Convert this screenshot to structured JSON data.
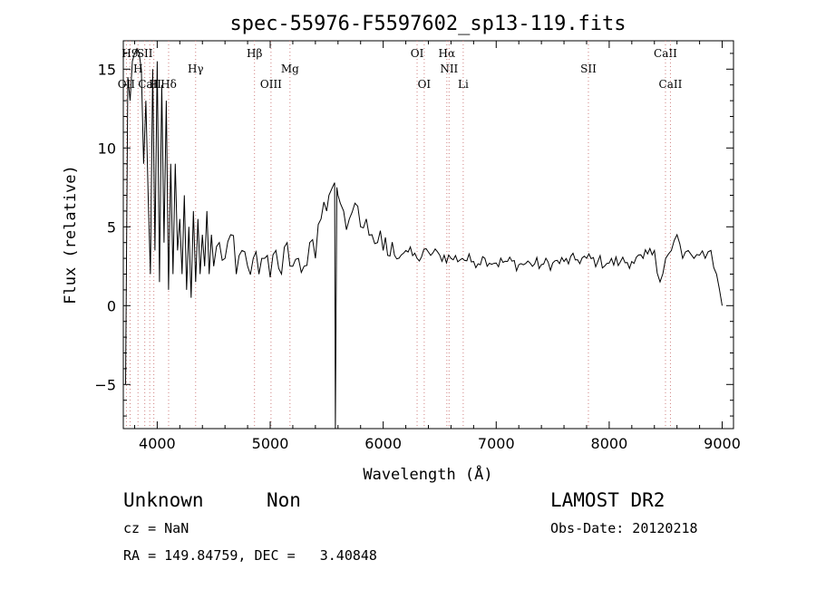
{
  "chart_data": {
    "type": "line",
    "title": "spec-55976-F5597602_sp13-119.fits",
    "xlabel": "Wavelength (Å)",
    "ylabel": "Flux (relative)",
    "xlim": [
      3700,
      9100
    ],
    "ylim": [
      -7.8,
      16.8
    ],
    "xticks": [
      4000,
      5000,
      6000,
      7000,
      8000,
      9000
    ],
    "yticks": [
      -5,
      0,
      5,
      10,
      15
    ],
    "grid": false,
    "series": [
      {
        "x": [
          3720,
          3740,
          3760,
          3780,
          3800,
          3820,
          3840,
          3860,
          3880,
          3900,
          3920,
          3940,
          3960,
          3980,
          4000,
          4020,
          4040,
          4060,
          4080,
          4100,
          4120,
          4140,
          4160,
          4180,
          4200,
          4220,
          4240,
          4260,
          4280,
          4300,
          4320,
          4340,
          4360,
          4380,
          4400,
          4420,
          4440,
          4460,
          4480,
          4500,
          4550,
          4600,
          4650,
          4700,
          4750,
          4800,
          4850,
          4900,
          4950,
          5000,
          5050,
          5100,
          5150,
          5200,
          5250,
          5300,
          5350,
          5400,
          5450,
          5500,
          5520,
          5550,
          5570,
          5577,
          5590,
          5600,
          5620,
          5650,
          5700,
          5750,
          5800,
          5850,
          5900,
          5950,
          6000,
          6100,
          6200,
          6300,
          6400,
          6500,
          6600,
          6700,
          6800,
          6900,
          7000,
          7100,
          7200,
          7300,
          7400,
          7500,
          7600,
          7700,
          7800,
          7900,
          8000,
          8100,
          8200,
          8300,
          8400,
          8450,
          8500,
          8550,
          8600,
          8650,
          8700,
          8750,
          8800,
          8850,
          8900,
          8950,
          9000
        ],
        "values": [
          -5.0,
          14.5,
          13.0,
          15.5,
          16.0,
          16.3,
          16.0,
          15.0,
          9.0,
          13.0,
          7.0,
          2.0,
          15.0,
          3.5,
          15.5,
          1.5,
          14.0,
          4.0,
          13.0,
          1.0,
          9.0,
          2.0,
          9.0,
          3.5,
          5.5,
          2.0,
          7.0,
          1.0,
          5.0,
          0.5,
          6.0,
          1.5,
          5.5,
          2.0,
          4.5,
          2.5,
          6.0,
          2.0,
          4.5,
          2.5,
          4.0,
          3.0,
          4.5,
          2.0,
          3.5,
          2.5,
          3.0,
          2.0,
          3.0,
          1.8,
          3.5,
          2.0,
          4.0,
          2.5,
          3.0,
          2.5,
          4.0,
          3.0,
          5.5,
          6.0,
          7.0,
          7.5,
          7.8,
          -7.8,
          7.5,
          7.0,
          6.5,
          6.0,
          5.5,
          6.5,
          5.0,
          5.5,
          4.5,
          4.0,
          3.5,
          3.2,
          3.5,
          3.0,
          3.4,
          3.2,
          3.0,
          3.0,
          2.8,
          3.0,
          2.7,
          2.8,
          2.6,
          2.7,
          2.6,
          2.7,
          2.8,
          2.9,
          3.0,
          2.8,
          2.7,
          2.8,
          2.8,
          3.0,
          3.5,
          1.5,
          3.0,
          3.5,
          4.5,
          3.0,
          3.5,
          3.0,
          3.2,
          3.0,
          3.5,
          2.0,
          0.0
        ]
      }
    ],
    "line_markers": [
      {
        "wl": 3727,
        "label": "OII",
        "row": 3
      },
      {
        "wl": 3760,
        "label": "H9",
        "row": 1
      },
      {
        "wl": 3830,
        "label": "H",
        "row": 2
      },
      {
        "wl": 3890,
        "label": "SII",
        "row": 1
      },
      {
        "wl": 3934,
        "label": "CaII",
        "row": 3
      },
      {
        "wl": 3970,
        "label": "H",
        "row": 3
      },
      {
        "wl": 4101,
        "label": "Hδ",
        "row": 3
      },
      {
        "wl": 4340,
        "label": "Hγ",
        "row": 2
      },
      {
        "wl": 4861,
        "label": "Hβ",
        "row": 1
      },
      {
        "wl": 5007,
        "label": "OIII",
        "row": 3
      },
      {
        "wl": 5175,
        "label": "Mg",
        "row": 2
      },
      {
        "wl": 6300,
        "label": "OI",
        "row": 1
      },
      {
        "wl": 6363,
        "label": "OI",
        "row": 3
      },
      {
        "wl": 6563,
        "label": "Hα",
        "row": 1
      },
      {
        "wl": 6583,
        "label": "NII",
        "row": 2
      },
      {
        "wl": 6708,
        "label": "Li",
        "row": 3
      },
      {
        "wl": 7816,
        "label": "SII",
        "row": 2
      },
      {
        "wl": 8498,
        "label": "CaII",
        "row": 1
      },
      {
        "wl": 8542,
        "label": "CaII",
        "row": 3
      }
    ]
  },
  "info": {
    "object_class": "Unknown",
    "subclass": "Non",
    "survey": "LAMOST DR2",
    "redshift": "cz = NaN",
    "obs_date": "Obs-Date: 20120218",
    "coords": "RA = 149.84759, DEC =   3.40848"
  }
}
